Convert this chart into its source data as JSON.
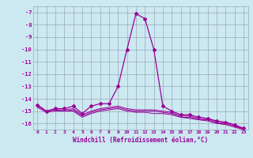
{
  "xlabel": "Windchill (Refroidissement éolien,°C)",
  "x": [
    0,
    1,
    2,
    3,
    4,
    5,
    6,
    7,
    8,
    9,
    10,
    11,
    12,
    13,
    14,
    15,
    16,
    17,
    18,
    19,
    20,
    21,
    22,
    23
  ],
  "y_main": [
    -14.5,
    -15.0,
    -14.8,
    -14.8,
    -14.6,
    -15.2,
    -14.6,
    -14.4,
    -14.4,
    -13.0,
    -10.0,
    -7.1,
    -7.5,
    -10.0,
    -14.6,
    -15.0,
    -15.3,
    -15.3,
    -15.5,
    -15.6,
    -15.8,
    -15.9,
    -16.1,
    -16.4
  ],
  "y_fill1": [
    -14.5,
    -15.0,
    -14.9,
    -14.9,
    -14.8,
    -15.3,
    -15.0,
    -14.8,
    -14.7,
    -14.6,
    -14.8,
    -14.9,
    -14.9,
    -14.9,
    -15.0,
    -15.1,
    -15.4,
    -15.4,
    -15.6,
    -15.6,
    -15.9,
    -16.0,
    -16.2,
    -16.4
  ],
  "y_fill2": [
    -14.6,
    -15.0,
    -14.9,
    -15.0,
    -14.9,
    -15.4,
    -15.1,
    -14.9,
    -14.8,
    -14.7,
    -14.9,
    -15.0,
    -15.0,
    -15.0,
    -15.1,
    -15.2,
    -15.5,
    -15.5,
    -15.7,
    -15.7,
    -16.0,
    -16.0,
    -16.2,
    -16.5
  ],
  "y_fill3": [
    -14.7,
    -15.1,
    -15.0,
    -15.0,
    -15.0,
    -15.5,
    -15.2,
    -15.0,
    -14.9,
    -14.8,
    -15.0,
    -15.1,
    -15.1,
    -15.2,
    -15.2,
    -15.3,
    -15.5,
    -15.6,
    -15.7,
    -15.8,
    -16.0,
    -16.1,
    -16.3,
    -16.5
  ],
  "ylim": [
    -16.5,
    -6.5
  ],
  "yticks": [
    -16,
    -15,
    -14,
    -13,
    -12,
    -11,
    -10,
    -9,
    -8,
    -7
  ],
  "xlim": [
    -0.5,
    23.5
  ],
  "bg_color": "#cce8f0",
  "line_color": "#990099",
  "grid_color": "#99aabb"
}
